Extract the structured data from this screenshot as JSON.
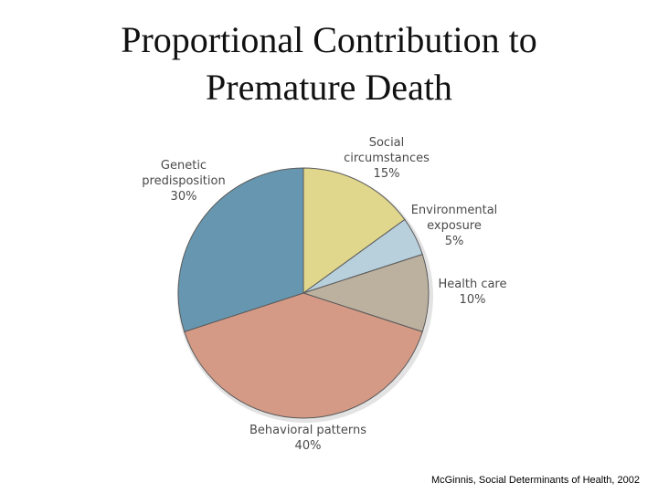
{
  "title": {
    "line1": "Proportional Contribution to",
    "line2": "Premature Death"
  },
  "citation": "McGinnis, Social Determinants of Health, 2002",
  "chart_data": {
    "type": "pie",
    "start_angle_deg": 0,
    "direction": "clockwise",
    "slices": [
      {
        "label": [
          "Social",
          "circumstances",
          "15%"
        ],
        "value": 15,
        "color": "#e0d68c"
      },
      {
        "label": [
          "Environmental",
          "exposure",
          "5%"
        ],
        "value": 5,
        "color": "#b8cfdc"
      },
      {
        "label": [
          "Health care",
          "10%"
        ],
        "value": 10,
        "color": "#bcb19f"
      },
      {
        "label": [
          "Behavioral patterns",
          "40%"
        ],
        "value": 40,
        "color": "#d49a86"
      },
      {
        "label": [
          "Genetic",
          "predisposition",
          "30%"
        ],
        "value": 30,
        "color": "#6797b0"
      }
    ]
  }
}
